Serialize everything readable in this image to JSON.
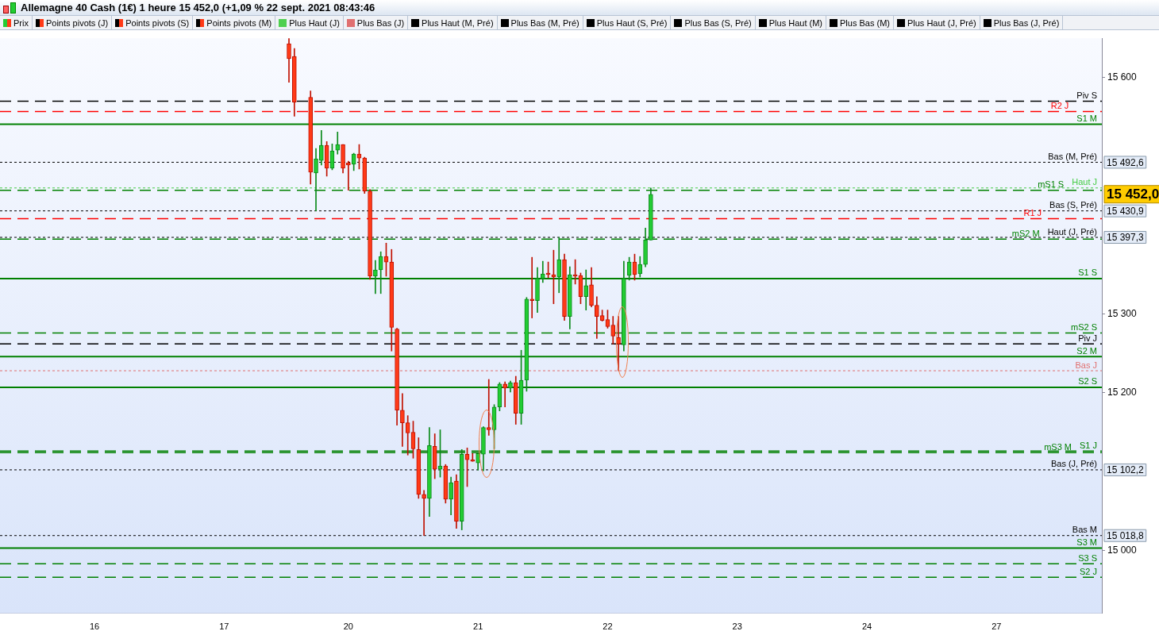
{
  "chart_data": {
    "type": "candlestick",
    "title": "Allemagne 40 Cash (1€) 1 heure 15 452,0 (+1,09 % 22 sept. 2021 08:43:46",
    "categories": [
      null,
      null,
      null,
      null,
      null,
      null,
      null,
      null,
      null,
      null,
      null,
      null,
      null,
      null,
      null,
      null,
      null,
      "16",
      null,
      null,
      null,
      null,
      null,
      null,
      null,
      null,
      null,
      null,
      null,
      null,
      null,
      null,
      null,
      null,
      null,
      null,
      null,
      null,
      null,
      null,
      null,
      "17",
      null,
      null,
      null,
      null,
      null,
      null,
      null,
      null,
      null,
      null,
      null,
      null,
      null,
      null,
      null,
      null,
      null,
      null,
      null,
      null,
      null,
      null,
      "20",
      null,
      null,
      null,
      null,
      null,
      null,
      null,
      null,
      null,
      null,
      null,
      null,
      null,
      null,
      null,
      null,
      null,
      null,
      null,
      null,
      null,
      null,
      null,
      "21",
      null,
      null,
      null,
      null,
      null,
      null,
      null,
      null,
      null,
      null,
      null,
      null,
      null,
      null,
      null,
      null,
      null,
      null,
      null,
      null,
      null,
      null,
      null,
      "22",
      null,
      null,
      null,
      null,
      null,
      null,
      null,
      null,
      null,
      null,
      null,
      null,
      null,
      null,
      null,
      null,
      null,
      null,
      null,
      null,
      null,
      null,
      null,
      "23",
      null,
      null,
      null,
      null,
      null,
      null,
      null,
      null,
      null,
      null,
      null,
      null,
      null,
      null,
      null,
      null,
      null,
      null,
      null,
      null,
      null,
      null,
      null,
      "24",
      null,
      null,
      null,
      null,
      null,
      null,
      null,
      null,
      null,
      null,
      null,
      null,
      null,
      null,
      null,
      null,
      null,
      null,
      null,
      null,
      null,
      null,
      null,
      "27",
      null,
      null,
      null,
      null,
      null,
      null,
      null,
      null,
      null,
      null,
      null,
      null,
      null,
      null,
      null,
      null,
      null,
      null,
      null
    ],
    "ohlc": [
      null,
      null,
      null,
      null,
      null,
      null,
      null,
      null,
      null,
      null,
      null,
      null,
      null,
      null,
      null,
      null,
      null,
      null,
      null,
      null,
      null,
      null,
      null,
      null,
      null,
      null,
      null,
      null,
      null,
      null,
      null,
      null,
      null,
      null,
      null,
      null,
      null,
      null,
      null,
      null,
      null,
      null,
      null,
      null,
      null,
      null,
      null,
      null,
      null,
      null,
      null,
      null,
      null,
      [
        15643,
        15650,
        15594,
        15624
      ],
      [
        15627,
        15637,
        15551,
        15569
      ],
      null,
      null,
      [
        15575,
        15583,
        15465,
        15480
      ],
      [
        15479,
        15510,
        15431,
        15497
      ],
      [
        15495,
        15533,
        15489,
        15514
      ],
      [
        15514,
        15519,
        15475,
        15485
      ],
      [
        15485,
        15516,
        15483,
        15507
      ],
      [
        15508,
        15531,
        15503,
        15515
      ],
      [
        15515,
        15515,
        15479,
        15485
      ],
      [
        15492,
        15494,
        15457,
        15489
      ],
      [
        15490,
        15504,
        15482,
        15503
      ],
      [
        15503,
        15515,
        15484,
        15498
      ],
      [
        15498,
        15499,
        15453,
        15456
      ],
      [
        15456,
        15458,
        15344,
        15348
      ],
      [
        15348,
        15368,
        15326,
        15356
      ],
      [
        15356,
        15379,
        15326,
        15373
      ],
      [
        15373,
        15390,
        15348,
        15366
      ],
      [
        15366,
        15382,
        15253,
        15283
      ],
      [
        15281,
        15282,
        15159,
        15178
      ],
      [
        15178,
        15199,
        15132,
        15162
      ],
      [
        15162,
        15171,
        15121,
        15149
      ],
      [
        15150,
        15164,
        15117,
        15129
      ],
      [
        15128,
        15143,
        15066,
        15071
      ],
      [
        15071,
        15076,
        15018.8,
        15066
      ],
      [
        15066,
        15156,
        15043,
        15133
      ],
      [
        15132,
        15148,
        15091,
        15103
      ],
      [
        15103,
        15153,
        15093,
        15107
      ],
      [
        15107,
        15109,
        15060,
        15065
      ],
      [
        15065,
        15093,
        15045,
        15086
      ],
      [
        15088,
        15096,
        15028,
        15037
      ],
      [
        15037,
        15128,
        15026,
        15122
      ],
      [
        15122,
        15130,
        15081,
        15115
      ],
      [
        15115,
        15123,
        15113,
        15113
      ],
      [
        15111,
        15123,
        15102,
        15123
      ],
      [
        15122,
        15157,
        15101,
        15156
      ],
      [
        15156,
        15217,
        15146,
        15153
      ],
      [
        15153,
        15185,
        15129,
        15182
      ],
      [
        15182,
        15213,
        15177,
        15211
      ],
      [
        15211,
        15214,
        15182,
        15206
      ],
      [
        15206,
        15215,
        15201,
        15213
      ],
      [
        15213,
        15221,
        15160,
        15174
      ],
      [
        15174,
        15254,
        15160,
        15216
      ],
      [
        15216,
        15321,
        15202,
        15319
      ],
      [
        15319,
        15372,
        15295,
        15317
      ],
      [
        15317,
        15359,
        15302,
        15345
      ],
      [
        15345,
        15367,
        15340,
        15351
      ],
      [
        15351,
        15366,
        15346,
        15350
      ],
      [
        15350,
        15381,
        15313,
        15347
      ],
      [
        15347,
        15397.3,
        15327,
        15369
      ],
      [
        15369,
        15376,
        15292,
        15297
      ],
      [
        15297,
        15360,
        15281,
        15350
      ],
      [
        15350,
        15369,
        15338,
        15348
      ],
      [
        15349,
        15352,
        15313,
        15322
      ],
      [
        15322,
        15356,
        15305,
        15336
      ],
      [
        15337,
        15359,
        15309,
        15311
      ],
      [
        15311,
        15322,
        15269,
        15297
      ],
      [
        15298,
        15305,
        15291,
        15292
      ],
      [
        15293,
        15305,
        15282,
        15284
      ],
      [
        15286,
        15297,
        15262,
        15272
      ],
      [
        15270,
        15297,
        15228,
        15262
      ],
      [
        15261,
        15367,
        15253,
        15345
      ],
      [
        15349,
        15372,
        15343,
        15366
      ],
      [
        15366,
        15376,
        15343,
        15350
      ],
      [
        15351,
        15373,
        15347,
        15363
      ],
      [
        15363,
        15409,
        15360,
        15394
      ],
      [
        15394,
        15460,
        15394,
        15452
      ],
      null,
      null,
      null,
      null,
      null,
      null,
      null,
      null,
      null,
      null,
      null,
      null,
      null,
      null,
      null,
      null,
      null,
      null,
      null,
      null,
      null,
      null,
      null,
      null,
      null,
      null,
      null,
      null,
      null,
      null,
      null,
      null,
      null,
      null,
      null,
      null,
      null,
      null,
      null,
      null,
      null,
      null,
      null,
      null,
      null,
      null,
      null,
      null,
      null,
      null,
      null,
      null,
      null,
      null,
      null,
      null,
      null,
      null,
      null,
      null,
      null,
      null,
      null,
      null,
      null,
      null,
      null,
      null,
      null,
      null,
      null,
      null,
      null,
      null,
      null,
      null,
      null,
      null,
      null,
      null,
      null,
      null,
      null
    ],
    "ylim": [
      14920,
      15650
    ],
    "yticks": [
      {
        "value": 15000,
        "label": "15 000"
      },
      {
        "value": 15200,
        "label": "15 200"
      },
      {
        "value": 15300,
        "label": "15 300"
      },
      {
        "value": 15600,
        "label": "15 600"
      }
    ],
    "ref_lines": [
      {
        "axis": "y",
        "value": 15570,
        "label": "Piv S",
        "color": "#000000",
        "line_style": "dashed"
      },
      {
        "axis": "y",
        "value": 15557,
        "label": "R2 J",
        "color": "#ff0000",
        "line_style": "dashed"
      },
      {
        "axis": "y",
        "value": 15541,
        "label": "S1 M",
        "color": "#008000",
        "line_style": "solid"
      },
      {
        "axis": "y",
        "value": 15492.6,
        "label": "Bas (M, Pré)",
        "color": "#000000",
        "line_style": "dotted"
      },
      {
        "axis": "y",
        "value": 15460,
        "label": "Haut J",
        "color": "#44cc44",
        "line_style": "dotted"
      },
      {
        "axis": "y",
        "value": 15457,
        "label": "mS1 S",
        "color": "#008000",
        "line_style": "dashed"
      },
      {
        "axis": "y",
        "value": 15430.9,
        "label": "Bas (S, Pré)",
        "color": "#000000",
        "line_style": "dotted"
      },
      {
        "axis": "y",
        "value": 15421,
        "label": "R1 J",
        "color": "#ff0000",
        "line_style": "dashed"
      },
      {
        "axis": "y",
        "value": 15397.3,
        "label": "Haut (J, Pré)",
        "color": "#000000",
        "line_style": "dotted"
      },
      {
        "axis": "y",
        "value": 15395,
        "label": "mS2 M",
        "color": "#008000",
        "line_style": "dashed"
      },
      {
        "axis": "y",
        "value": 15345,
        "label": "S1 S",
        "color": "#008000",
        "line_style": "solid"
      },
      {
        "axis": "y",
        "value": 15276,
        "label": "mS2 S",
        "color": "#008000",
        "line_style": "dashed"
      },
      {
        "axis": "y",
        "value": 15262,
        "label": "Piv J",
        "color": "#000000",
        "line_style": "dashed"
      },
      {
        "axis": "y",
        "value": 15246,
        "label": "S2 M",
        "color": "#008000",
        "line_style": "solid"
      },
      {
        "axis": "y",
        "value": 15228,
        "label": "Bas J",
        "color": "#e07070",
        "line_style": "dotted"
      },
      {
        "axis": "y",
        "value": 15207,
        "label": "S2 S",
        "color": "#008000",
        "line_style": "solid"
      },
      {
        "axis": "y",
        "value": 15126,
        "label": "S1 J",
        "color": "#008000",
        "line_style": "dashed"
      },
      {
        "axis": "y",
        "value": 15124,
        "label": "mS3 M",
        "color": "#008000",
        "line_style": "dashed"
      },
      {
        "axis": "y",
        "value": 15102.2,
        "label": "Bas (J, Pré)",
        "color": "#000000",
        "line_style": "dotted"
      },
      {
        "axis": "y",
        "value": 15018.8,
        "label": "Bas M",
        "color": "#000000",
        "line_style": "dotted"
      },
      {
        "axis": "y",
        "value": 15003,
        "label": "S3 M",
        "color": "#008000",
        "line_style": "solid"
      },
      {
        "axis": "y",
        "value": 14983,
        "label": "S3 S",
        "color": "#008000",
        "line_style": "dashed"
      },
      {
        "axis": "y",
        "value": 14966,
        "label": "S2 J",
        "color": "#008000",
        "line_style": "dashed"
      }
    ],
    "annotations": [
      "Prix",
      "Points pivots (J)",
      "Points pivots (S)",
      "Points pivots (M)",
      "Plus Haut (J)",
      "Plus Bas (J)",
      "Plus Haut (M, Pré)",
      "Plus Bas (M, Pré)",
      "Plus Haut (S, Pré)",
      "Plus Bas (S, Pré)",
      "Plus Haut (M)",
      "Plus Bas (M)",
      "Plus Haut (J, Pré)",
      "Plus Bas (J, Pré)",
      "15 492,6",
      "15 452,0",
      "15 430,9",
      "15 397,3",
      "15 102,2",
      "15 018,8"
    ],
    "legend": false
  }
}
